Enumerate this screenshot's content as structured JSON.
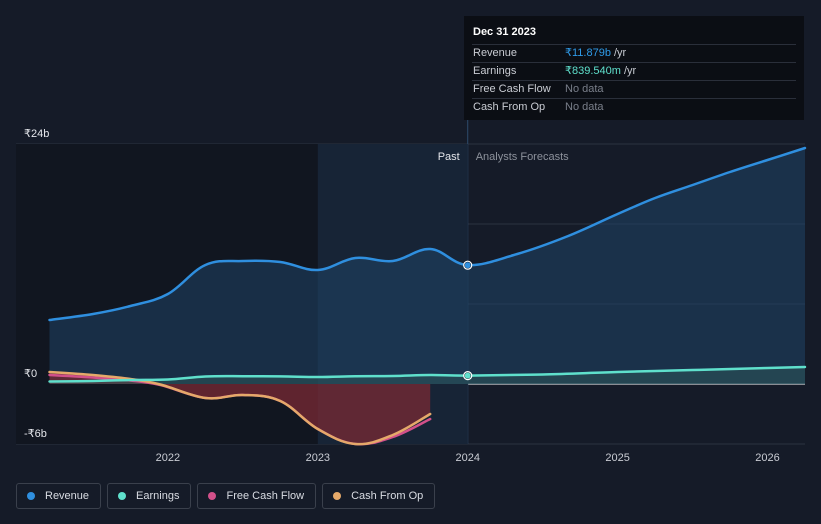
{
  "tooltip": {
    "date": "Dec 31 2023",
    "rows": [
      {
        "label": "Revenue",
        "value": "₹11.879b",
        "unit": "/yr"
      },
      {
        "label": "Earnings",
        "value": "₹839.540m",
        "unit": "/yr"
      },
      {
        "label": "Free Cash Flow",
        "value": "No data",
        "unit": ""
      },
      {
        "label": "Cash From Op",
        "value": "No data",
        "unit": ""
      }
    ]
  },
  "regions": {
    "past": "Past",
    "forecast": "Analysts Forecasts"
  },
  "legend": [
    {
      "label": "Revenue",
      "color": "#2f8fdf"
    },
    {
      "label": "Earnings",
      "color": "#5fe0cc"
    },
    {
      "label": "Free Cash Flow",
      "color": "#d2508a"
    },
    {
      "label": "Cash From Op",
      "color": "#e5a96a"
    }
  ],
  "chart_data": {
    "type": "area",
    "y_tick_labels": [
      "₹24b",
      "₹0",
      "-₹6b"
    ],
    "x_tick_labels": [
      "2022",
      "2023",
      "2024",
      "2025",
      "2026"
    ],
    "ylim": [
      -6,
      24
    ],
    "xlim": [
      2021.2,
      2026.25
    ],
    "forecast_start": 2024.0,
    "grid": true,
    "series": [
      {
        "name": "Revenue",
        "color": "#2f8fdf",
        "unit": "₹b",
        "x": [
          2021.21,
          2021.5,
          2021.75,
          2022.0,
          2022.25,
          2022.5,
          2022.75,
          2023.0,
          2023.25,
          2023.5,
          2023.75,
          2024.0,
          2024.33,
          2024.67,
          2025.0,
          2025.25,
          2025.5,
          2025.75,
          2026.0,
          2026.25
        ],
        "y": [
          6.4,
          7.0,
          7.8,
          9.0,
          11.9,
          12.3,
          12.2,
          11.4,
          12.6,
          12.3,
          13.5,
          11.9,
          13.0,
          14.8,
          17.0,
          18.6,
          19.9,
          21.2,
          22.4,
          23.6
        ]
      },
      {
        "name": "Earnings",
        "color": "#5fe0cc",
        "unit": "₹b",
        "x": [
          2021.21,
          2021.5,
          2021.75,
          2022.0,
          2022.25,
          2022.5,
          2022.75,
          2023.0,
          2023.25,
          2023.5,
          2023.75,
          2024.0,
          2024.5,
          2025.0,
          2025.5,
          2026.0,
          2026.25
        ],
        "y": [
          0.25,
          0.3,
          0.4,
          0.45,
          0.75,
          0.78,
          0.76,
          0.7,
          0.78,
          0.8,
          0.9,
          0.84,
          0.95,
          1.2,
          1.4,
          1.6,
          1.7
        ]
      },
      {
        "name": "Free Cash Flow",
        "color": "#d2508a",
        "unit": "₹b",
        "x": [
          2021.21,
          2021.5,
          2021.75,
          2021.95,
          2022.25,
          2022.5,
          2022.75,
          2023.0,
          2023.25,
          2023.5,
          2023.75
        ],
        "y": [
          0.9,
          0.65,
          0.35,
          -0.1,
          -1.4,
          -1.1,
          -1.7,
          -4.5,
          -6.0,
          -5.3,
          -3.5
        ]
      },
      {
        "name": "Cash From Op",
        "color": "#e5a96a",
        "unit": "₹b",
        "x": [
          2021.21,
          2021.5,
          2021.75,
          2021.95,
          2022.25,
          2022.5,
          2022.75,
          2023.0,
          2023.25,
          2023.5,
          2023.75
        ],
        "y": [
          1.2,
          0.9,
          0.5,
          -0.05,
          -1.4,
          -1.1,
          -1.7,
          -4.5,
          -6.0,
          -5.1,
          -3.0
        ]
      }
    ],
    "highlight": {
      "x": 2024.0,
      "points": [
        {
          "series": "Revenue",
          "y": 11.879
        },
        {
          "series": "Earnings",
          "y": 0.84
        }
      ]
    }
  }
}
